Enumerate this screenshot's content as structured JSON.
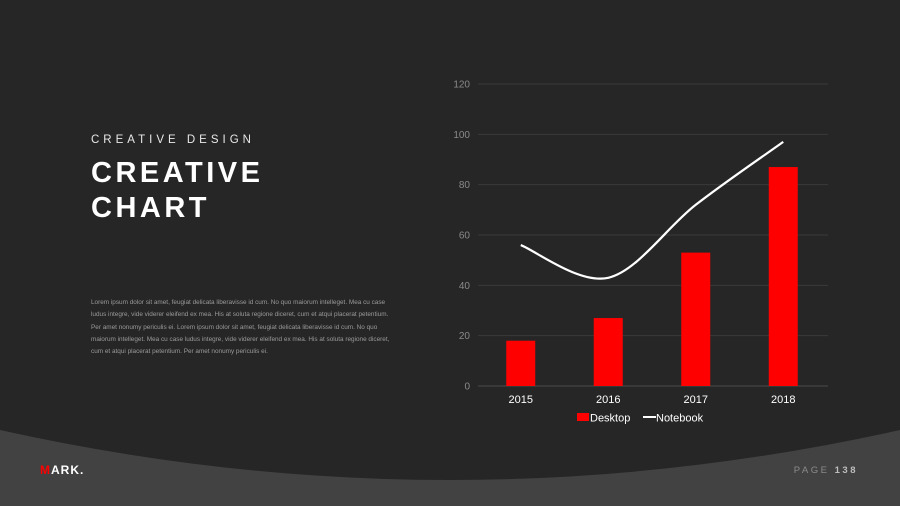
{
  "slide": {
    "subtitle": "CREATIVE DESIGN",
    "title_line1": "CREATIVE",
    "title_line2": "CHART",
    "body": "Lorem ipsum dolor sit amet, feugiat delicata liberavisse id cum. No quo maiorum intelleget. Mea cu case ludus integre, vide viderer eleifend ex mea. His at soluta regione diceret, cum et atqui placerat petentium. Per amet nonumy periculis ei. Lorem ipsum dolor sit amet, feugiat delicata liberavisse id cum. No quo maiorum intelleget. Mea cu case ludus integre, vide viderer eleifend ex mea. His at soluta regione diceret, cum et atqui placerat petentium. Per amet nonumy periculis ei."
  },
  "footer": {
    "logo_first": "M",
    "logo_rest": "ARK.",
    "page_label": "PAGE",
    "page_number": "138"
  },
  "colors": {
    "background": "#262626",
    "footer": "#424242",
    "accent": "#ff0000",
    "line": "#ffffff"
  },
  "chart_data": {
    "type": "bar",
    "categories": [
      "2015",
      "2016",
      "2017",
      "2018"
    ],
    "series": [
      {
        "name": "Desktop",
        "type": "bar",
        "values": [
          18,
          27,
          53,
          87
        ]
      },
      {
        "name": "Notebook",
        "type": "line",
        "values": [
          56,
          43,
          72,
          97
        ]
      }
    ],
    "ylim": [
      0,
      120
    ],
    "yticks": [
      "0",
      "20",
      "40",
      "60",
      "80",
      "100",
      "120"
    ],
    "grid": true,
    "legend": "bottom"
  }
}
